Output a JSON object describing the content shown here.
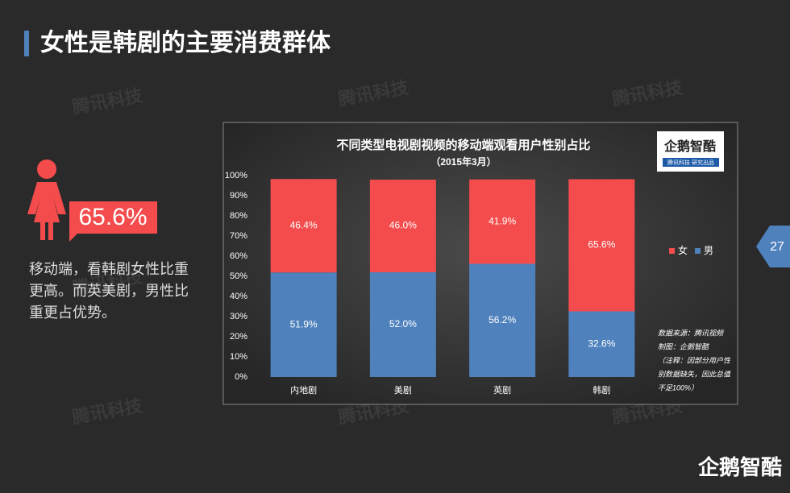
{
  "slide": {
    "title": "女性是韩剧的主要消费群体",
    "stat": "65.6%",
    "text_lines": [
      "移动端，看韩剧女性比重",
      "更高。而英美剧，男性比",
      "重更占优势。"
    ],
    "page_number": "27",
    "watermark": "腾讯科技",
    "brand": "企鹅智酷"
  },
  "chart_data": {
    "type": "stacked_bar",
    "title": "不同类型电视剧视频的移动端观看用户性别占比",
    "subtitle": "（2015年3月）",
    "logo": {
      "name": "企鹅智酷",
      "tagline": "腾讯科技  研究出品"
    },
    "categories": [
      "内地剧",
      "美剧",
      "英剧",
      "韩剧"
    ],
    "series": [
      {
        "name": "男",
        "color": "#4f81bd",
        "values": [
          51.9,
          52.0,
          56.2,
          32.6
        ],
        "value_labels": [
          "51.9%",
          "52.0%",
          "56.2%",
          "32.6%"
        ]
      },
      {
        "name": "女",
        "color": "#f44c4c",
        "values": [
          46.4,
          46.0,
          41.9,
          65.6
        ],
        "value_labels": [
          "46.4%",
          "46.0%",
          "41.9%",
          "65.6%"
        ]
      }
    ],
    "ylim": [
      0,
      100
    ],
    "yticks": [
      {
        "value": 0,
        "label": "0%"
      },
      {
        "value": 10,
        "label": "10%"
      },
      {
        "value": 20,
        "label": "20%"
      },
      {
        "value": 30,
        "label": "30%"
      },
      {
        "value": 40,
        "label": "40%"
      },
      {
        "value": 50,
        "label": "50%"
      },
      {
        "value": 60,
        "label": "60%"
      },
      {
        "value": 70,
        "label": "70%"
      },
      {
        "value": 80,
        "label": "80%"
      },
      {
        "value": 90,
        "label": "90%"
      },
      {
        "value": 100,
        "label": "100%"
      }
    ],
    "grid": false,
    "legend": "right",
    "notes": [
      "数据来源：腾讯视频",
      "制图：企鹅智酷",
      "（注释：因部分用户性",
      "别数据缺失，因此总值",
      "不足100%）"
    ]
  }
}
